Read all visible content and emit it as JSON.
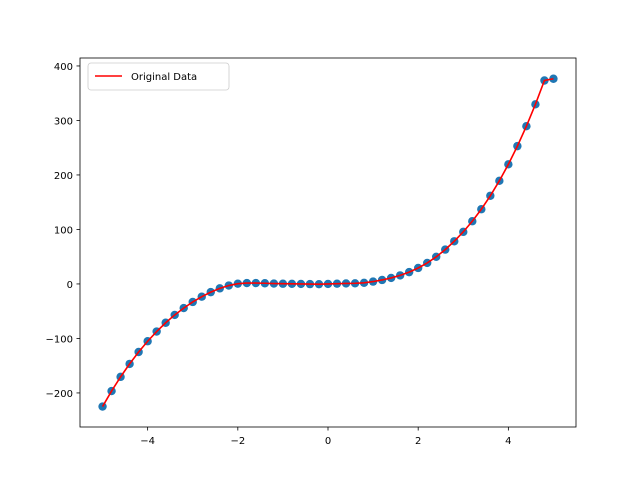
{
  "chart_data": {
    "type": "scatter",
    "title": "",
    "xlabel": "",
    "ylabel": "",
    "xlim": [
      -5.5,
      5.5
    ],
    "ylim": [
      -262.5,
      414.6
    ],
    "grid": false,
    "legend_placement": "top-left",
    "x_ticks": [
      -4,
      -2,
      0,
      2,
      4
    ],
    "x_tick_labels": [
      "−4",
      "−2",
      "0",
      "2",
      "4"
    ],
    "y_ticks": [
      -200,
      -100,
      0,
      100,
      200,
      300,
      400
    ],
    "y_tick_labels": [
      "−200",
      "−100",
      "0",
      "100",
      "200",
      "300",
      "400"
    ],
    "series": [
      {
        "kind": "scatter",
        "color": "#1f77b4",
        "x": [
          -5.0,
          -4.8,
          -4.6,
          -4.4,
          -4.2,
          -4.0,
          -3.8,
          -3.6,
          -3.4,
          -3.2,
          -3.0,
          -2.8,
          -2.6,
          -2.4,
          -2.2,
          -2.0,
          -1.8,
          -1.6,
          -1.4,
          -1.2,
          -1.0,
          -0.8,
          -0.6,
          -0.4,
          -0.2,
          0.0,
          0.2,
          0.4,
          0.6,
          0.8,
          1.0,
          1.2,
          1.4,
          1.6,
          1.8,
          2.0,
          2.2,
          2.4,
          2.6,
          2.8,
          3.0,
          3.2,
          3.4,
          3.6,
          3.8,
          4.0,
          4.2,
          4.4,
          4.6,
          4.8,
          5.0
        ],
        "y": [
          -225.0,
          -196.6,
          -170.5,
          -146.7,
          -124.9,
          -105.1,
          -87.3,
          -71.2,
          -56.9,
          -44.3,
          -33.1,
          -23.4,
          -15.0,
          -8.1,
          -2.9,
          0.5,
          1.6,
          1.6,
          1.3,
          0.7,
          0.4,
          0.2,
          0.0,
          -0.3,
          -0.4,
          0.0,
          0.5,
          0.9,
          1.2,
          2.1,
          4.3,
          7.3,
          11.0,
          15.7,
          21.7,
          29.3,
          38.6,
          49.8,
          63.0,
          78.3,
          95.6,
          115.1,
          137.1,
          161.8,
          189.2,
          219.5,
          252.9,
          289.5,
          329.6,
          373.3,
          376.5
        ]
      },
      {
        "kind": "line",
        "name": "Original Data",
        "color": "#ff0000",
        "x": [
          -5.0,
          -4.8,
          -4.6,
          -4.4,
          -4.2,
          -4.0,
          -3.8,
          -3.6,
          -3.4,
          -3.2,
          -3.0,
          -2.8,
          -2.6,
          -2.4,
          -2.2,
          -2.0,
          -1.8,
          -1.6,
          -1.4,
          -1.2,
          -1.0,
          -0.8,
          -0.6,
          -0.4,
          -0.2,
          0.0,
          0.2,
          0.4,
          0.6,
          0.8,
          1.0,
          1.2,
          1.4,
          1.6,
          1.8,
          2.0,
          2.2,
          2.4,
          2.6,
          2.8,
          3.0,
          3.2,
          3.4,
          3.6,
          3.8,
          4.0,
          4.2,
          4.4,
          4.6,
          4.8,
          5.0
        ],
        "y": [
          -225.0,
          -196.6,
          -170.5,
          -146.7,
          -124.9,
          -105.1,
          -87.3,
          -71.2,
          -56.9,
          -44.3,
          -33.1,
          -23.4,
          -15.0,
          -8.1,
          -2.9,
          0.5,
          1.6,
          1.6,
          1.3,
          0.7,
          0.4,
          0.2,
          0.0,
          -0.3,
          -0.4,
          0.0,
          0.5,
          0.9,
          1.2,
          2.1,
          4.3,
          7.3,
          11.0,
          15.7,
          21.7,
          29.3,
          38.6,
          49.8,
          63.0,
          78.3,
          95.6,
          115.1,
          137.1,
          161.8,
          189.2,
          219.5,
          252.9,
          289.5,
          329.6,
          373.3,
          376.5
        ]
      }
    ]
  }
}
